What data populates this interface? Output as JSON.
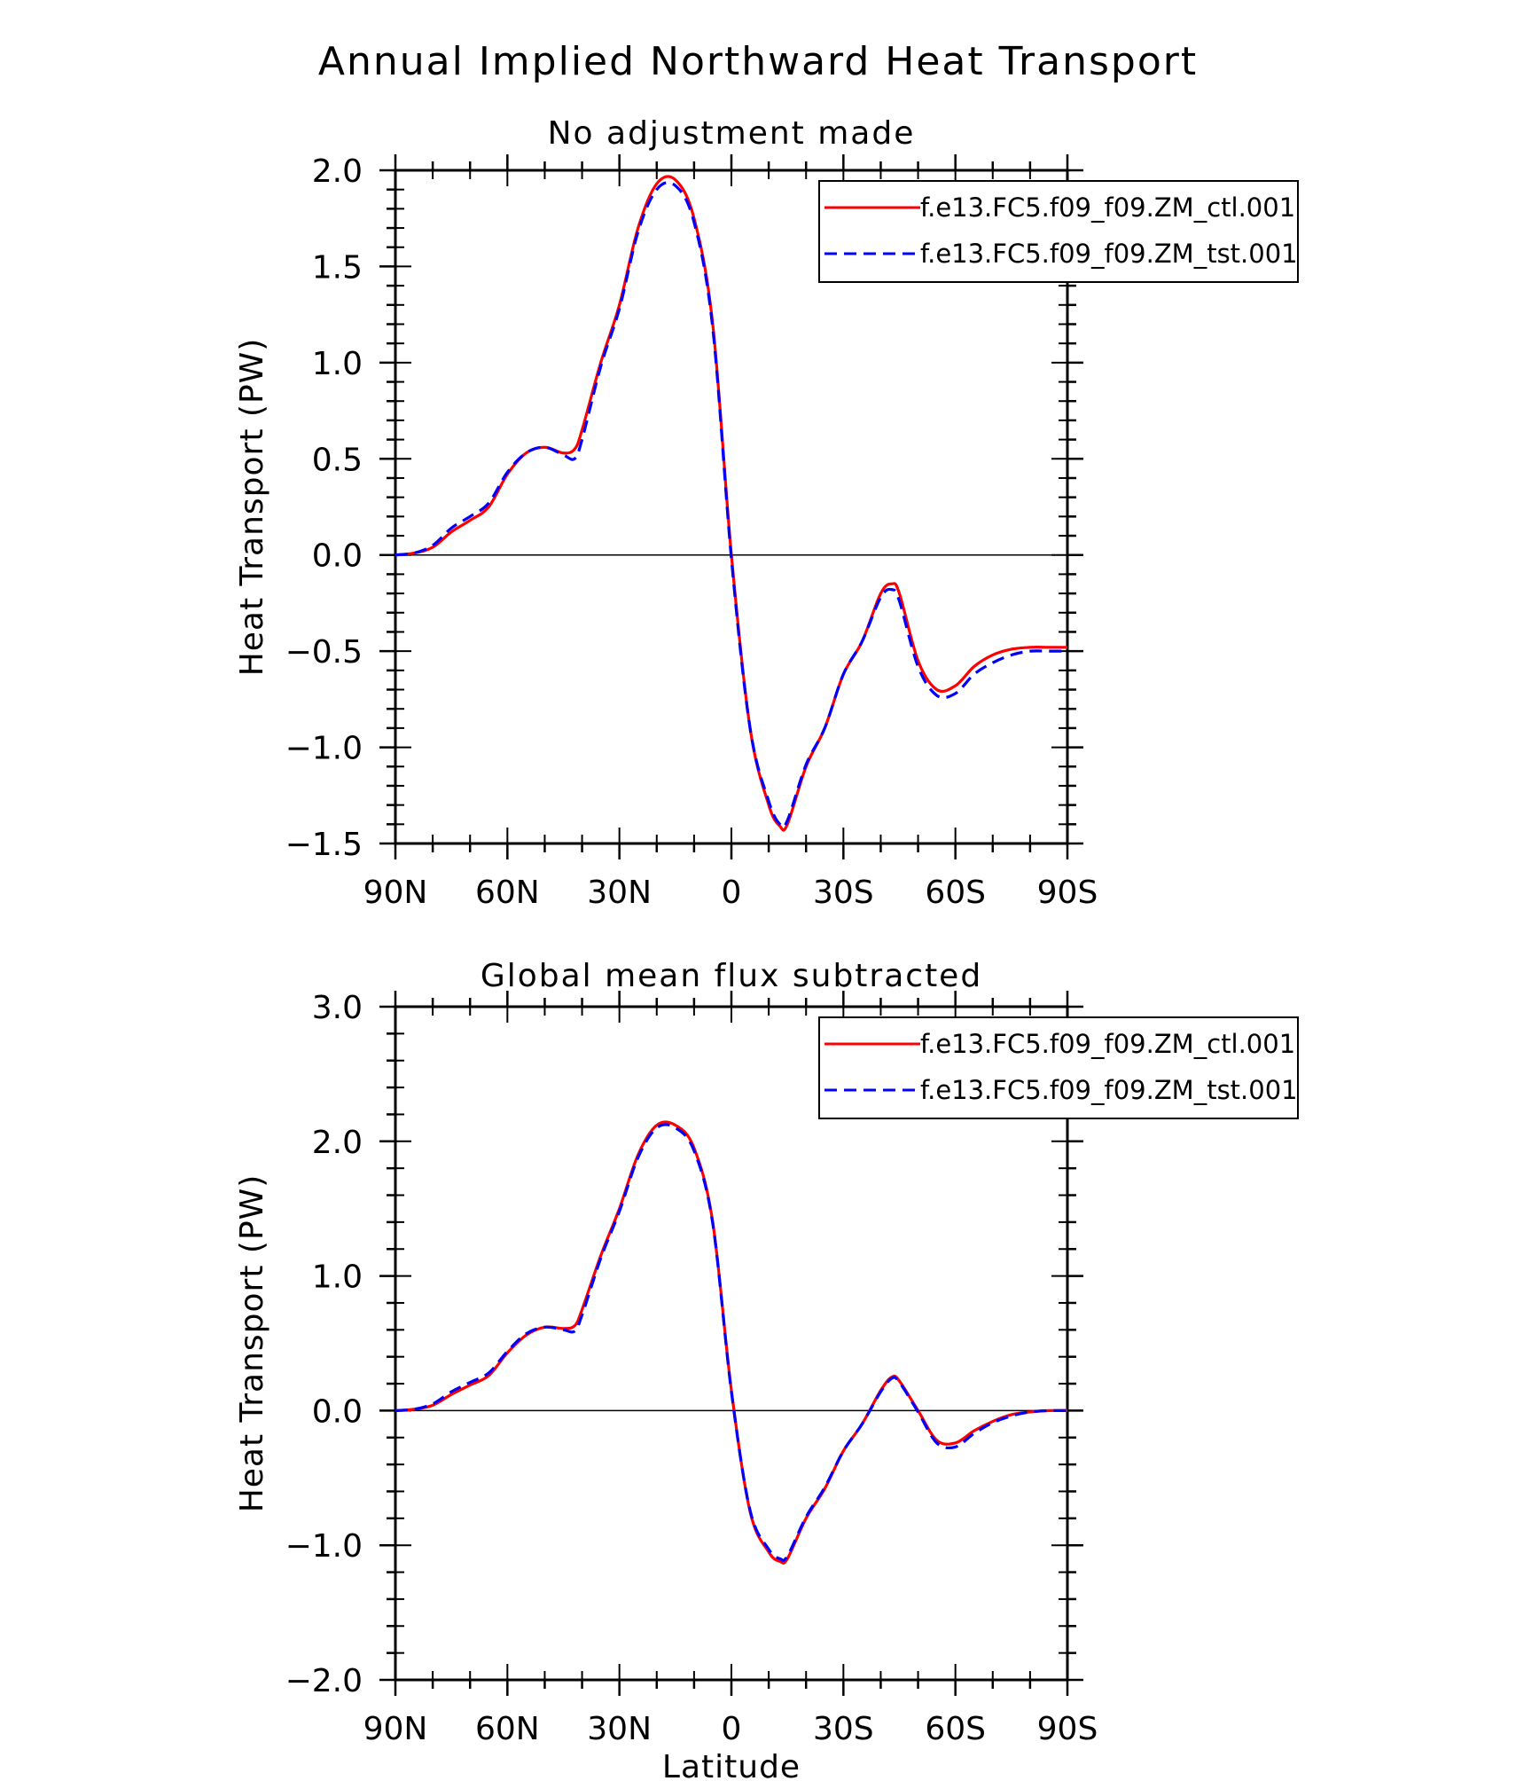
{
  "figure": {
    "title": "Annual Implied Northward Heat Transport"
  },
  "colors": {
    "ctl": "#ff0000",
    "tst": "#0000ff",
    "axis": "#000000"
  },
  "chart_data": [
    {
      "type": "line",
      "title": "No adjustment made",
      "xlabel": "",
      "ylabel": "Heat Transport (PW)",
      "xlim": [
        -90,
        90
      ],
      "ylim": [
        -1.5,
        2.0
      ],
      "x_ticks": [
        -90,
        -60,
        -30,
        0,
        30,
        60,
        90
      ],
      "x_tick_labels": [
        "90N",
        "60N",
        "30N",
        "0",
        "30S",
        "60S",
        "90S"
      ],
      "y_ticks": [
        -1.5,
        -1.0,
        -0.5,
        0.0,
        0.5,
        1.0,
        1.5,
        2.0
      ],
      "y_tick_labels": [
        "−1.5",
        "−1.0",
        "−0.5",
        "0.0",
        "0.5",
        "1.0",
        "1.5",
        "2.0"
      ],
      "zero_line": true,
      "legend_position": "top-right",
      "series": [
        {
          "name": "f.e13.FC5.f09_f09.ZM_ctl.001",
          "style": "solid",
          "color": "#ff0000",
          "x": [
            -90,
            -85,
            -80,
            -75,
            -70,
            -65,
            -60,
            -55,
            -50,
            -45,
            -42,
            -40,
            -35,
            -30,
            -25,
            -20,
            -15,
            -10,
            -5,
            0,
            5,
            10,
            13,
            15,
            20,
            25,
            30,
            35,
            40,
            43,
            45,
            50,
            55,
            60,
            65,
            70,
            75,
            80,
            85,
            90
          ],
          "y": [
            0.0,
            0.01,
            0.04,
            0.12,
            0.18,
            0.25,
            0.42,
            0.53,
            0.56,
            0.53,
            0.55,
            0.65,
            1.0,
            1.3,
            1.7,
            1.93,
            1.95,
            1.75,
            1.2,
            0.0,
            -0.9,
            -1.3,
            -1.41,
            -1.4,
            -1.1,
            -0.9,
            -0.62,
            -0.45,
            -0.2,
            -0.15,
            -0.2,
            -0.55,
            -0.7,
            -0.68,
            -0.58,
            -0.52,
            -0.49,
            -0.48,
            -0.48,
            -0.48
          ]
        },
        {
          "name": "f.e13.FC5.f09_f09.ZM_tst.001",
          "style": "dashed",
          "color": "#0000ff",
          "x": [
            -90,
            -85,
            -80,
            -75,
            -70,
            -65,
            -60,
            -55,
            -50,
            -45,
            -42,
            -40,
            -35,
            -30,
            -25,
            -20,
            -15,
            -10,
            -5,
            0,
            5,
            10,
            13,
            15,
            20,
            25,
            30,
            35,
            40,
            43,
            45,
            50,
            55,
            60,
            65,
            70,
            75,
            80,
            85,
            90
          ],
          "y": [
            0.0,
            0.01,
            0.05,
            0.14,
            0.2,
            0.27,
            0.43,
            0.53,
            0.56,
            0.52,
            0.5,
            0.6,
            0.98,
            1.28,
            1.68,
            1.9,
            1.92,
            1.73,
            1.18,
            -0.02,
            -0.9,
            -1.28,
            -1.4,
            -1.38,
            -1.09,
            -0.9,
            -0.62,
            -0.45,
            -0.22,
            -0.18,
            -0.24,
            -0.58,
            -0.73,
            -0.72,
            -0.62,
            -0.56,
            -0.52,
            -0.5,
            -0.5,
            -0.5
          ]
        }
      ]
    },
    {
      "type": "line",
      "title": "Global mean flux subtracted",
      "xlabel": "Latitude",
      "ylabel": "Heat Transport (PW)",
      "xlim": [
        -90,
        90
      ],
      "ylim": [
        -2.0,
        3.0
      ],
      "x_ticks": [
        -90,
        -60,
        -30,
        0,
        30,
        60,
        90
      ],
      "x_tick_labels": [
        "90N",
        "60N",
        "30N",
        "0",
        "30S",
        "60S",
        "90S"
      ],
      "y_ticks": [
        -2.0,
        -1.0,
        0.0,
        1.0,
        2.0,
        3.0
      ],
      "y_tick_labels": [
        "−2.0",
        "−1.0",
        "0.0",
        "1.0",
        "2.0",
        "3.0"
      ],
      "zero_line": true,
      "legend_position": "top-right",
      "series": [
        {
          "name": "f.e13.FC5.f09_f09.ZM_ctl.001",
          "style": "solid",
          "color": "#ff0000",
          "x": [
            -90,
            -85,
            -80,
            -75,
            -70,
            -65,
            -60,
            -55,
            -50,
            -45,
            -42,
            -40,
            -35,
            -30,
            -25,
            -20,
            -15,
            -10,
            -5,
            0,
            5,
            10,
            13,
            15,
            20,
            25,
            30,
            35,
            40,
            43,
            45,
            50,
            55,
            60,
            65,
            70,
            75,
            80,
            85,
            90
          ],
          "y": [
            0.0,
            0.01,
            0.04,
            0.12,
            0.19,
            0.26,
            0.43,
            0.56,
            0.62,
            0.61,
            0.63,
            0.75,
            1.15,
            1.5,
            1.9,
            2.12,
            2.12,
            1.95,
            1.4,
            0.15,
            -0.75,
            -1.05,
            -1.12,
            -1.1,
            -0.8,
            -0.58,
            -0.3,
            -0.1,
            0.15,
            0.25,
            0.22,
            0.0,
            -0.22,
            -0.24,
            -0.15,
            -0.08,
            -0.03,
            -0.01,
            0.0,
            0.0
          ]
        },
        {
          "name": "f.e13.FC5.f09_f09.ZM_tst.001",
          "style": "dashed",
          "color": "#0000ff",
          "x": [
            -90,
            -85,
            -80,
            -75,
            -70,
            -65,
            -60,
            -55,
            -50,
            -45,
            -42,
            -40,
            -35,
            -30,
            -25,
            -20,
            -15,
            -10,
            -5,
            0,
            5,
            10,
            13,
            15,
            20,
            25,
            30,
            35,
            40,
            43,
            45,
            50,
            55,
            60,
            65,
            70,
            75,
            80,
            85,
            90
          ],
          "y": [
            0.0,
            0.01,
            0.05,
            0.14,
            0.21,
            0.28,
            0.44,
            0.57,
            0.62,
            0.6,
            0.59,
            0.71,
            1.13,
            1.48,
            1.88,
            2.1,
            2.1,
            1.93,
            1.39,
            0.14,
            -0.74,
            -1.03,
            -1.1,
            -1.08,
            -0.79,
            -0.57,
            -0.3,
            -0.1,
            0.14,
            0.24,
            0.21,
            -0.01,
            -0.24,
            -0.27,
            -0.17,
            -0.09,
            -0.04,
            -0.01,
            0.0,
            0.0
          ]
        }
      ]
    }
  ]
}
